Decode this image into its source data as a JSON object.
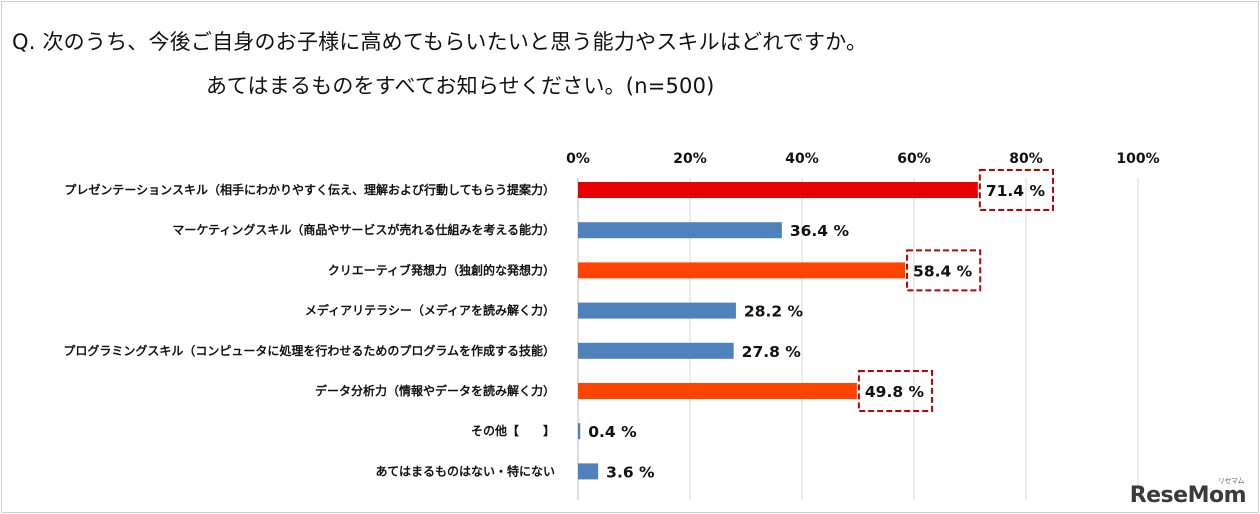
{
  "question": {
    "line1": "Q. 次のうち、今後ご自身のお子様に高めてもらいたいと思う能力やスキルはどれですか。",
    "line2": "あてはまるものをすべてお知らせください。(n=500)"
  },
  "logo": {
    "text": "ReseMom",
    "sub": "リセマム"
  },
  "colors": {
    "highlight_top": "#e60000",
    "highlight": "#ff4400",
    "normal": "#4f81bd",
    "box": "#c00000",
    "grid": "#d9d9d9"
  },
  "chart_data": {
    "type": "bar",
    "orientation": "horizontal",
    "xlim": [
      0,
      100
    ],
    "ticks": [
      "0%",
      "20%",
      "40%",
      "60%",
      "80%",
      "100%"
    ],
    "grid": true,
    "categories": [
      "プレゼンテーションスキル（相手にわかりやすく伝え、理解および行動してもらう提案力）",
      "マーケティングスキル（商品やサービスが売れる仕組みを考える能力）",
      "クリエーティブ発想力（独創的な発想力）",
      "メディアリテラシー（メディアを読み解く力）",
      "プログラミングスキル（コンピュータに処理を行わせるためのプログラムを作成する技能）",
      "データ分析力（情報やデータを読み解く力）",
      "その他【　　】",
      "あてはまるものはない・特にない"
    ],
    "values": [
      71.4,
      36.4,
      58.4,
      28.2,
      27.8,
      49.8,
      0.4,
      3.6
    ],
    "value_labels": [
      "71.4 %",
      "36.4 %",
      "58.4 %",
      "28.2 %",
      "27.8 %",
      "49.8 %",
      "0.4 %",
      "3.6 %"
    ],
    "bar_color_keys": [
      "highlight_top",
      "normal",
      "highlight",
      "normal",
      "normal",
      "highlight",
      "normal",
      "normal"
    ],
    "boxed": [
      true,
      false,
      true,
      false,
      false,
      true,
      false,
      false
    ]
  }
}
